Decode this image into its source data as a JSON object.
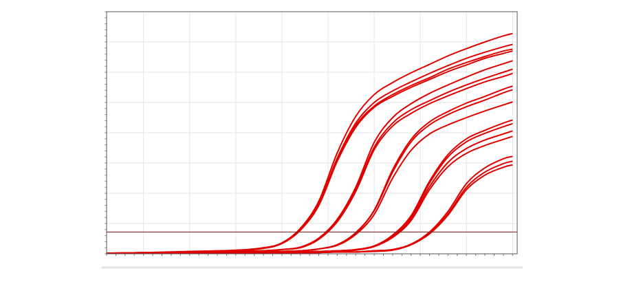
{
  "chart_data": {
    "type": "line",
    "title": "",
    "xlabel": "",
    "ylabel": "",
    "xlim": [
      1,
      45.5
    ],
    "ylim": [
      0,
      40
    ],
    "grid": true,
    "legend": "none",
    "line_color": "#e00000",
    "threshold": {
      "value": 3.6,
      "color": "#7a2a2a"
    },
    "x": [
      1,
      5,
      10,
      15,
      18,
      20,
      22,
      24,
      26,
      28,
      30,
      32,
      34,
      36,
      38,
      40,
      42,
      44,
      45
    ],
    "series": [
      {
        "values": [
          0.1,
          0.2,
          0.4,
          0.6,
          1.0,
          1.8,
          4.2,
          8.7,
          16.7,
          22.7,
          26.3,
          28.3,
          29.9,
          31.3,
          32.7,
          33.9,
          35.0,
          36.0,
          36.4
        ]
      },
      {
        "values": [
          0.1,
          0.2,
          0.3,
          0.5,
          1.0,
          1.7,
          4.0,
          8.3,
          15.8,
          21.6,
          25.0,
          26.9,
          28.4,
          29.8,
          31.1,
          32.3,
          33.3,
          34.2,
          34.6
        ]
      },
      {
        "values": [
          0.1,
          0.2,
          0.3,
          0.5,
          0.9,
          1.7,
          3.9,
          8.1,
          15.5,
          21.2,
          24.4,
          26.3,
          27.8,
          29.1,
          30.5,
          31.6,
          32.6,
          33.5,
          33.8
        ]
      },
      {
        "values": [
          0.1,
          0.2,
          0.3,
          0.5,
          0.9,
          1.7,
          3.9,
          8.0,
          15.3,
          20.9,
          24.2,
          26.0,
          27.5,
          28.8,
          30.1,
          31.2,
          32.3,
          33.1,
          33.5
        ]
      },
      {
        "values": [
          0.1,
          0.1,
          0.2,
          0.4,
          0.5,
          0.7,
          1.1,
          2.6,
          5.7,
          11.0,
          18.4,
          22.5,
          24.8,
          26.5,
          27.9,
          29.2,
          30.4,
          31.4,
          31.9
        ]
      },
      {
        "values": [
          0.1,
          0.1,
          0.2,
          0.4,
          0.5,
          0.7,
          1.1,
          2.5,
          5.5,
          10.6,
          17.6,
          21.6,
          23.8,
          25.3,
          26.7,
          27.9,
          29.0,
          30.0,
          30.5
        ]
      },
      {
        "values": [
          0.1,
          0.1,
          0.2,
          0.3,
          0.5,
          0.7,
          1.0,
          2.4,
          5.3,
          10.3,
          17.2,
          21.1,
          23.2,
          24.8,
          26.1,
          27.3,
          28.4,
          29.3,
          29.8
        ]
      },
      {
        "values": [
          0.1,
          0.1,
          0.2,
          0.3,
          0.3,
          0.4,
          0.5,
          0.8,
          1.5,
          3.5,
          7.2,
          13.9,
          18.9,
          21.8,
          23.5,
          24.9,
          26.0,
          27.2,
          27.7
        ]
      },
      {
        "values": [
          0.1,
          0.1,
          0.2,
          0.2,
          0.3,
          0.4,
          0.5,
          0.8,
          1.5,
          3.4,
          7.1,
          13.5,
          18.5,
          21.3,
          23.0,
          24.3,
          25.4,
          26.6,
          27.1
        ]
      },
      {
        "values": [
          0.1,
          0.1,
          0.2,
          0.2,
          0.3,
          0.4,
          0.5,
          0.8,
          1.4,
          3.2,
          6.5,
          12.5,
          17.1,
          19.8,
          21.3,
          22.5,
          23.6,
          24.6,
          25.1
        ]
      },
      {
        "values": [
          0.1,
          0.1,
          0.1,
          0.1,
          0.2,
          0.3,
          0.3,
          0.4,
          0.5,
          0.7,
          1.3,
          3.1,
          6.3,
          12.0,
          16.4,
          19.0,
          20.4,
          21.6,
          22.1
        ]
      },
      {
        "values": [
          0.1,
          0.1,
          0.1,
          0.1,
          0.2,
          0.2,
          0.3,
          0.4,
          0.5,
          0.7,
          1.3,
          3.0,
          6.1,
          11.7,
          16.0,
          18.5,
          19.9,
          21.0,
          21.5
        ]
      },
      {
        "values": [
          0.1,
          0.1,
          0.1,
          0.1,
          0.2,
          0.2,
          0.3,
          0.3,
          0.4,
          0.7,
          1.2,
          2.8,
          5.8,
          11.1,
          15.1,
          17.4,
          18.8,
          19.8,
          20.3
        ]
      },
      {
        "values": [
          0.1,
          0.1,
          0.1,
          0.1,
          0.2,
          0.2,
          0.3,
          0.3,
          0.4,
          0.6,
          1.2,
          2.7,
          5.5,
          10.6,
          14.4,
          16.6,
          17.9,
          18.9,
          19.4
        ]
      },
      {
        "values": [
          0.1,
          0.1,
          0.1,
          0.1,
          0.1,
          0.1,
          0.2,
          0.2,
          0.3,
          0.3,
          0.5,
          0.7,
          1.6,
          3.6,
          7.0,
          11.6,
          14.2,
          15.7,
          16.1
        ]
      },
      {
        "values": [
          0.1,
          0.1,
          0.1,
          0.1,
          0.1,
          0.1,
          0.2,
          0.2,
          0.3,
          0.3,
          0.5,
          0.7,
          1.5,
          3.4,
          6.6,
          11.0,
          13.5,
          14.9,
          15.3
        ]
      },
      {
        "values": [
          0.1,
          0.1,
          0.1,
          0.1,
          0.1,
          0.1,
          0.2,
          0.2,
          0.3,
          0.3,
          0.4,
          0.6,
          1.5,
          3.3,
          6.4,
          10.6,
          13.0,
          14.3,
          14.7
        ]
      }
    ]
  }
}
